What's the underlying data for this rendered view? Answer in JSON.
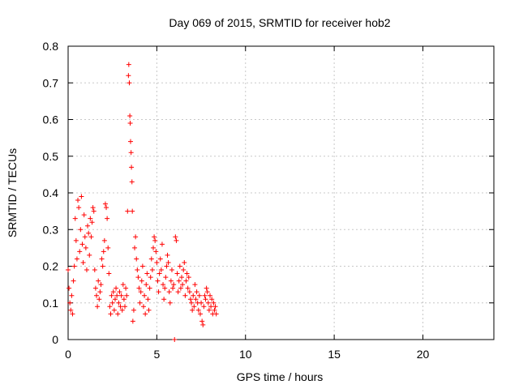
{
  "chart_data": {
    "type": "scatter",
    "title": "Day 069 of 2015, SRMTID for receiver hob2",
    "xlabel": "GPS time / hours",
    "ylabel": "SRMTID / TECUs",
    "xlim": [
      0,
      24
    ],
    "ylim": [
      0,
      0.8
    ],
    "x_ticks": [
      0,
      5,
      10,
      15,
      20
    ],
    "x_tick_labels": [
      "0",
      "5",
      "10",
      "15",
      "20"
    ],
    "y_ticks": [
      0,
      0.1,
      0.2,
      0.3,
      0.4,
      0.5,
      0.6,
      0.7,
      0.8
    ],
    "y_tick_labels": [
      "0",
      "0.1",
      "0.2",
      "0.3",
      "0.4",
      "0.5",
      "0.6",
      "0.7",
      "0.8"
    ],
    "grid": true,
    "marker": "+",
    "colors": {
      "points": "#ff0000",
      "grid": "#c8c8c8",
      "axes": "#000000"
    },
    "series": [
      {
        "name": "hob2",
        "points": [
          [
            0.0,
            0.19
          ],
          [
            0.05,
            0.14
          ],
          [
            0.1,
            0.1
          ],
          [
            0.15,
            0.08
          ],
          [
            0.2,
            0.12
          ],
          [
            0.25,
            0.07
          ],
          [
            0.3,
            0.16
          ],
          [
            0.35,
            0.2
          ],
          [
            0.4,
            0.33
          ],
          [
            0.45,
            0.27
          ],
          [
            0.5,
            0.22
          ],
          [
            0.55,
            0.38
          ],
          [
            0.6,
            0.36
          ],
          [
            0.65,
            0.24
          ],
          [
            0.7,
            0.3
          ],
          [
            0.75,
            0.39
          ],
          [
            0.8,
            0.26
          ],
          [
            0.85,
            0.21
          ],
          [
            0.9,
            0.34
          ],
          [
            0.95,
            0.28
          ],
          [
            1.0,
            0.25
          ],
          [
            1.05,
            0.19
          ],
          [
            1.1,
            0.31
          ],
          [
            1.15,
            0.29
          ],
          [
            1.2,
            0.23
          ],
          [
            1.25,
            0.33
          ],
          [
            1.3,
            0.28
          ],
          [
            1.35,
            0.32
          ],
          [
            1.4,
            0.36
          ],
          [
            1.45,
            0.35
          ],
          [
            1.5,
            0.19
          ],
          [
            1.55,
            0.14
          ],
          [
            1.6,
            0.12
          ],
          [
            1.65,
            0.09
          ],
          [
            1.7,
            0.16
          ],
          [
            1.75,
            0.11
          ],
          [
            1.8,
            0.13
          ],
          [
            1.85,
            0.15
          ],
          [
            1.9,
            0.22
          ],
          [
            1.95,
            0.2
          ],
          [
            2.0,
            0.24
          ],
          [
            2.05,
            0.27
          ],
          [
            2.1,
            0.37
          ],
          [
            2.15,
            0.36
          ],
          [
            2.2,
            0.33
          ],
          [
            2.25,
            0.25
          ],
          [
            2.3,
            0.18
          ],
          [
            2.35,
            0.09
          ],
          [
            2.4,
            0.07
          ],
          [
            2.45,
            0.12
          ],
          [
            2.5,
            0.1
          ],
          [
            2.55,
            0.13
          ],
          [
            2.6,
            0.08
          ],
          [
            2.65,
            0.11
          ],
          [
            2.7,
            0.14
          ],
          [
            2.75,
            0.12
          ],
          [
            2.8,
            0.07
          ],
          [
            2.85,
            0.1
          ],
          [
            2.9,
            0.13
          ],
          [
            2.95,
            0.09
          ],
          [
            3.0,
            0.12
          ],
          [
            3.05,
            0.08
          ],
          [
            3.1,
            0.15
          ],
          [
            3.15,
            0.11
          ],
          [
            3.2,
            0.09
          ],
          [
            3.25,
            0.14
          ],
          [
            3.3,
            0.12
          ],
          [
            3.35,
            0.35
          ],
          [
            3.4,
            0.72
          ],
          [
            3.42,
            0.75
          ],
          [
            3.45,
            0.7
          ],
          [
            3.48,
            0.61
          ],
          [
            3.5,
            0.59
          ],
          [
            3.52,
            0.54
          ],
          [
            3.55,
            0.51
          ],
          [
            3.57,
            0.47
          ],
          [
            3.6,
            0.43
          ],
          [
            3.62,
            0.35
          ],
          [
            3.65,
            0.05
          ],
          [
            3.7,
            0.08
          ],
          [
            3.75,
            0.25
          ],
          [
            3.8,
            0.28
          ],
          [
            3.85,
            0.22
          ],
          [
            3.9,
            0.19
          ],
          [
            3.95,
            0.17
          ],
          [
            4.0,
            0.14
          ],
          [
            4.05,
            0.1
          ],
          [
            4.1,
            0.13
          ],
          [
            4.15,
            0.16
          ],
          [
            4.2,
            0.2
          ],
          [
            4.25,
            0.09
          ],
          [
            4.3,
            0.12
          ],
          [
            4.35,
            0.07
          ],
          [
            4.4,
            0.15
          ],
          [
            4.45,
            0.18
          ],
          [
            4.5,
            0.11
          ],
          [
            4.55,
            0.08
          ],
          [
            4.6,
            0.14
          ],
          [
            4.65,
            0.17
          ],
          [
            4.7,
            0.22
          ],
          [
            4.75,
            0.19
          ],
          [
            4.8,
            0.25
          ],
          [
            4.85,
            0.28
          ],
          [
            4.9,
            0.27
          ],
          [
            4.95,
            0.24
          ],
          [
            5.0,
            0.21
          ],
          [
            5.05,
            0.16
          ],
          [
            5.1,
            0.13
          ],
          [
            5.15,
            0.18
          ],
          [
            5.2,
            0.22
          ],
          [
            5.25,
            0.19
          ],
          [
            5.3,
            0.26
          ],
          [
            5.35,
            0.15
          ],
          [
            5.4,
            0.11
          ],
          [
            5.45,
            0.14
          ],
          [
            5.5,
            0.17
          ],
          [
            5.55,
            0.2
          ],
          [
            5.6,
            0.23
          ],
          [
            5.65,
            0.21
          ],
          [
            5.7,
            0.13
          ],
          [
            5.75,
            0.1
          ],
          [
            5.8,
            0.16
          ],
          [
            5.85,
            0.19
          ],
          [
            5.9,
            0.14
          ],
          [
            5.95,
            0.15
          ],
          [
            6.0,
            0.0
          ],
          [
            6.05,
            0.28
          ],
          [
            6.1,
            0.27
          ],
          [
            6.15,
            0.18
          ],
          [
            6.2,
            0.13
          ],
          [
            6.25,
            0.16
          ],
          [
            6.3,
            0.2
          ],
          [
            6.35,
            0.14
          ],
          [
            6.4,
            0.17
          ],
          [
            6.45,
            0.15
          ],
          [
            6.5,
            0.19
          ],
          [
            6.55,
            0.21
          ],
          [
            6.6,
            0.12
          ],
          [
            6.65,
            0.16
          ],
          [
            6.7,
            0.18
          ],
          [
            6.75,
            0.14
          ],
          [
            6.8,
            0.17
          ],
          [
            6.85,
            0.13
          ],
          [
            6.9,
            0.11
          ],
          [
            6.95,
            0.1
          ],
          [
            7.0,
            0.08
          ],
          [
            7.05,
            0.12
          ],
          [
            7.1,
            0.09
          ],
          [
            7.15,
            0.15
          ],
          [
            7.2,
            0.11
          ],
          [
            7.25,
            0.13
          ],
          [
            7.3,
            0.1
          ],
          [
            7.35,
            0.08
          ],
          [
            7.4,
            0.12
          ],
          [
            7.45,
            0.07
          ],
          [
            7.5,
            0.1
          ],
          [
            7.55,
            0.05
          ],
          [
            7.6,
            0.04
          ],
          [
            7.65,
            0.09
          ],
          [
            7.7,
            0.12
          ],
          [
            7.75,
            0.11
          ],
          [
            7.8,
            0.14
          ],
          [
            7.85,
            0.13
          ],
          [
            7.9,
            0.1
          ],
          [
            7.95,
            0.08
          ],
          [
            8.0,
            0.12
          ],
          [
            8.05,
            0.09
          ],
          [
            8.1,
            0.11
          ],
          [
            8.15,
            0.07
          ],
          [
            8.2,
            0.1
          ],
          [
            8.25,
            0.08
          ],
          [
            8.3,
            0.09
          ],
          [
            8.35,
            0.07
          ]
        ]
      }
    ]
  }
}
